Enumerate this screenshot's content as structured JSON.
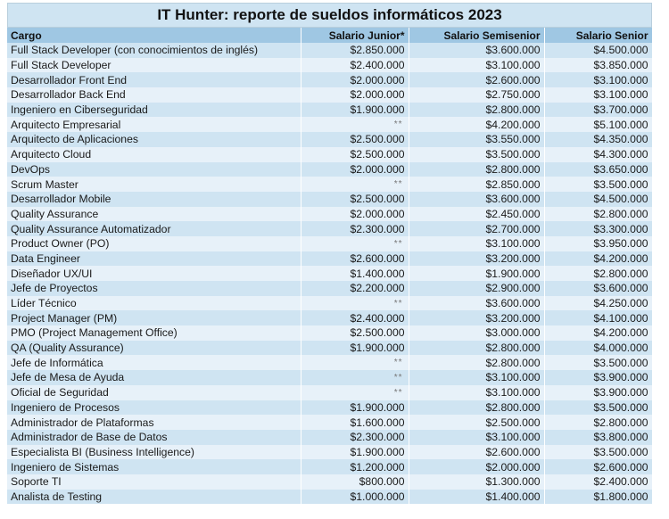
{
  "title": "IT Hunter: reporte de sueldos informáticos 2023",
  "headers": [
    "Cargo",
    "Salario Junior*",
    "Salario Semisenior",
    "Salario Senior"
  ],
  "rows": [
    [
      "Full Stack Developer (con conocimientos de inglés)",
      "$2.850.000",
      "$3.600.000",
      "$4.500.000"
    ],
    [
      "Full Stack Developer",
      "$2.400.000",
      "$3.100.000",
      "$3.850.000"
    ],
    [
      "Desarrollador Front End",
      "$2.000.000",
      "$2.600.000",
      "$3.100.000"
    ],
    [
      "Desarrollador Back End",
      "$2.000.000",
      "$2.750.000",
      "$3.100.000"
    ],
    [
      "Ingeniero en Ciberseguridad",
      "$1.900.000",
      "$2.800.000",
      "$3.700.000"
    ],
    [
      "Arquitecto Empresarial",
      "**",
      "$4.200.000",
      "$5.100.000"
    ],
    [
      "Arquitecto de Aplicaciones",
      "$2.500.000",
      "$3.550.000",
      "$4.350.000"
    ],
    [
      "Arquitecto Cloud",
      "$2.500.000",
      "$3.500.000",
      "$4.300.000"
    ],
    [
      "DevOps",
      "$2.000.000",
      "$2.800.000",
      "$3.650.000"
    ],
    [
      "Scrum Master",
      "**",
      "$2.850.000",
      "$3.500.000"
    ],
    [
      "Desarrollador Mobile",
      "$2.500.000",
      "$3.600.000",
      "$4.500.000"
    ],
    [
      "Quality Assurance",
      "$2.000.000",
      "$2.450.000",
      "$2.800.000"
    ],
    [
      "Quality Assurance Automatizador",
      "$2.300.000",
      "$2.700.000",
      "$3.300.000"
    ],
    [
      "Product Owner (PO)",
      "**",
      "$3.100.000",
      "$3.950.000"
    ],
    [
      "Data Engineer",
      "$2.600.000",
      "$3.200.000",
      "$4.200.000"
    ],
    [
      "Diseñador UX/UI",
      "$1.400.000",
      "$1.900.000",
      "$2.800.000"
    ],
    [
      "Jefe de Proyectos",
      "$2.200.000",
      "$2.900.000",
      "$3.600.000"
    ],
    [
      "Líder Técnico",
      "**",
      "$3.600.000",
      "$4.250.000"
    ],
    [
      "Project Manager (PM)",
      "$2.400.000",
      "$3.200.000",
      "$4.100.000"
    ],
    [
      "PMO (Project Management Office)",
      "$2.500.000",
      "$3.000.000",
      "$4.200.000"
    ],
    [
      "QA (Quality Assurance)",
      "$1.900.000",
      "$2.800.000",
      "$4.000.000"
    ],
    [
      "Jefe de Informática",
      "**",
      "$2.800.000",
      "$3.500.000"
    ],
    [
      "Jefe de Mesa de Ayuda",
      "**",
      "$3.100.000",
      "$3.900.000"
    ],
    [
      "Oficial de Seguridad",
      "**",
      "$3.100.000",
      "$3.900.000"
    ],
    [
      "Ingeniero de Procesos",
      "$1.900.000",
      "$2.800.000",
      "$3.500.000"
    ],
    [
      "Administrador de Plataformas",
      "$1.600.000",
      "$2.500.000",
      "$2.800.000"
    ],
    [
      "Administrador de Base de Datos",
      "$2.300.000",
      "$3.100.000",
      "$3.800.000"
    ],
    [
      "Especialista BI (Business Intelligence)",
      "$1.900.000",
      "$2.600.000",
      "$3.500.000"
    ],
    [
      "Ingeniero de Sistemas",
      "$1.200.000",
      "$2.000.000",
      "$2.600.000"
    ],
    [
      "Soporte TI",
      "$800.000",
      "$1.300.000",
      "$2.400.000"
    ],
    [
      "Analista de Testing",
      "$1.000.000",
      "$1.400.000",
      "$1.800.000"
    ]
  ]
}
